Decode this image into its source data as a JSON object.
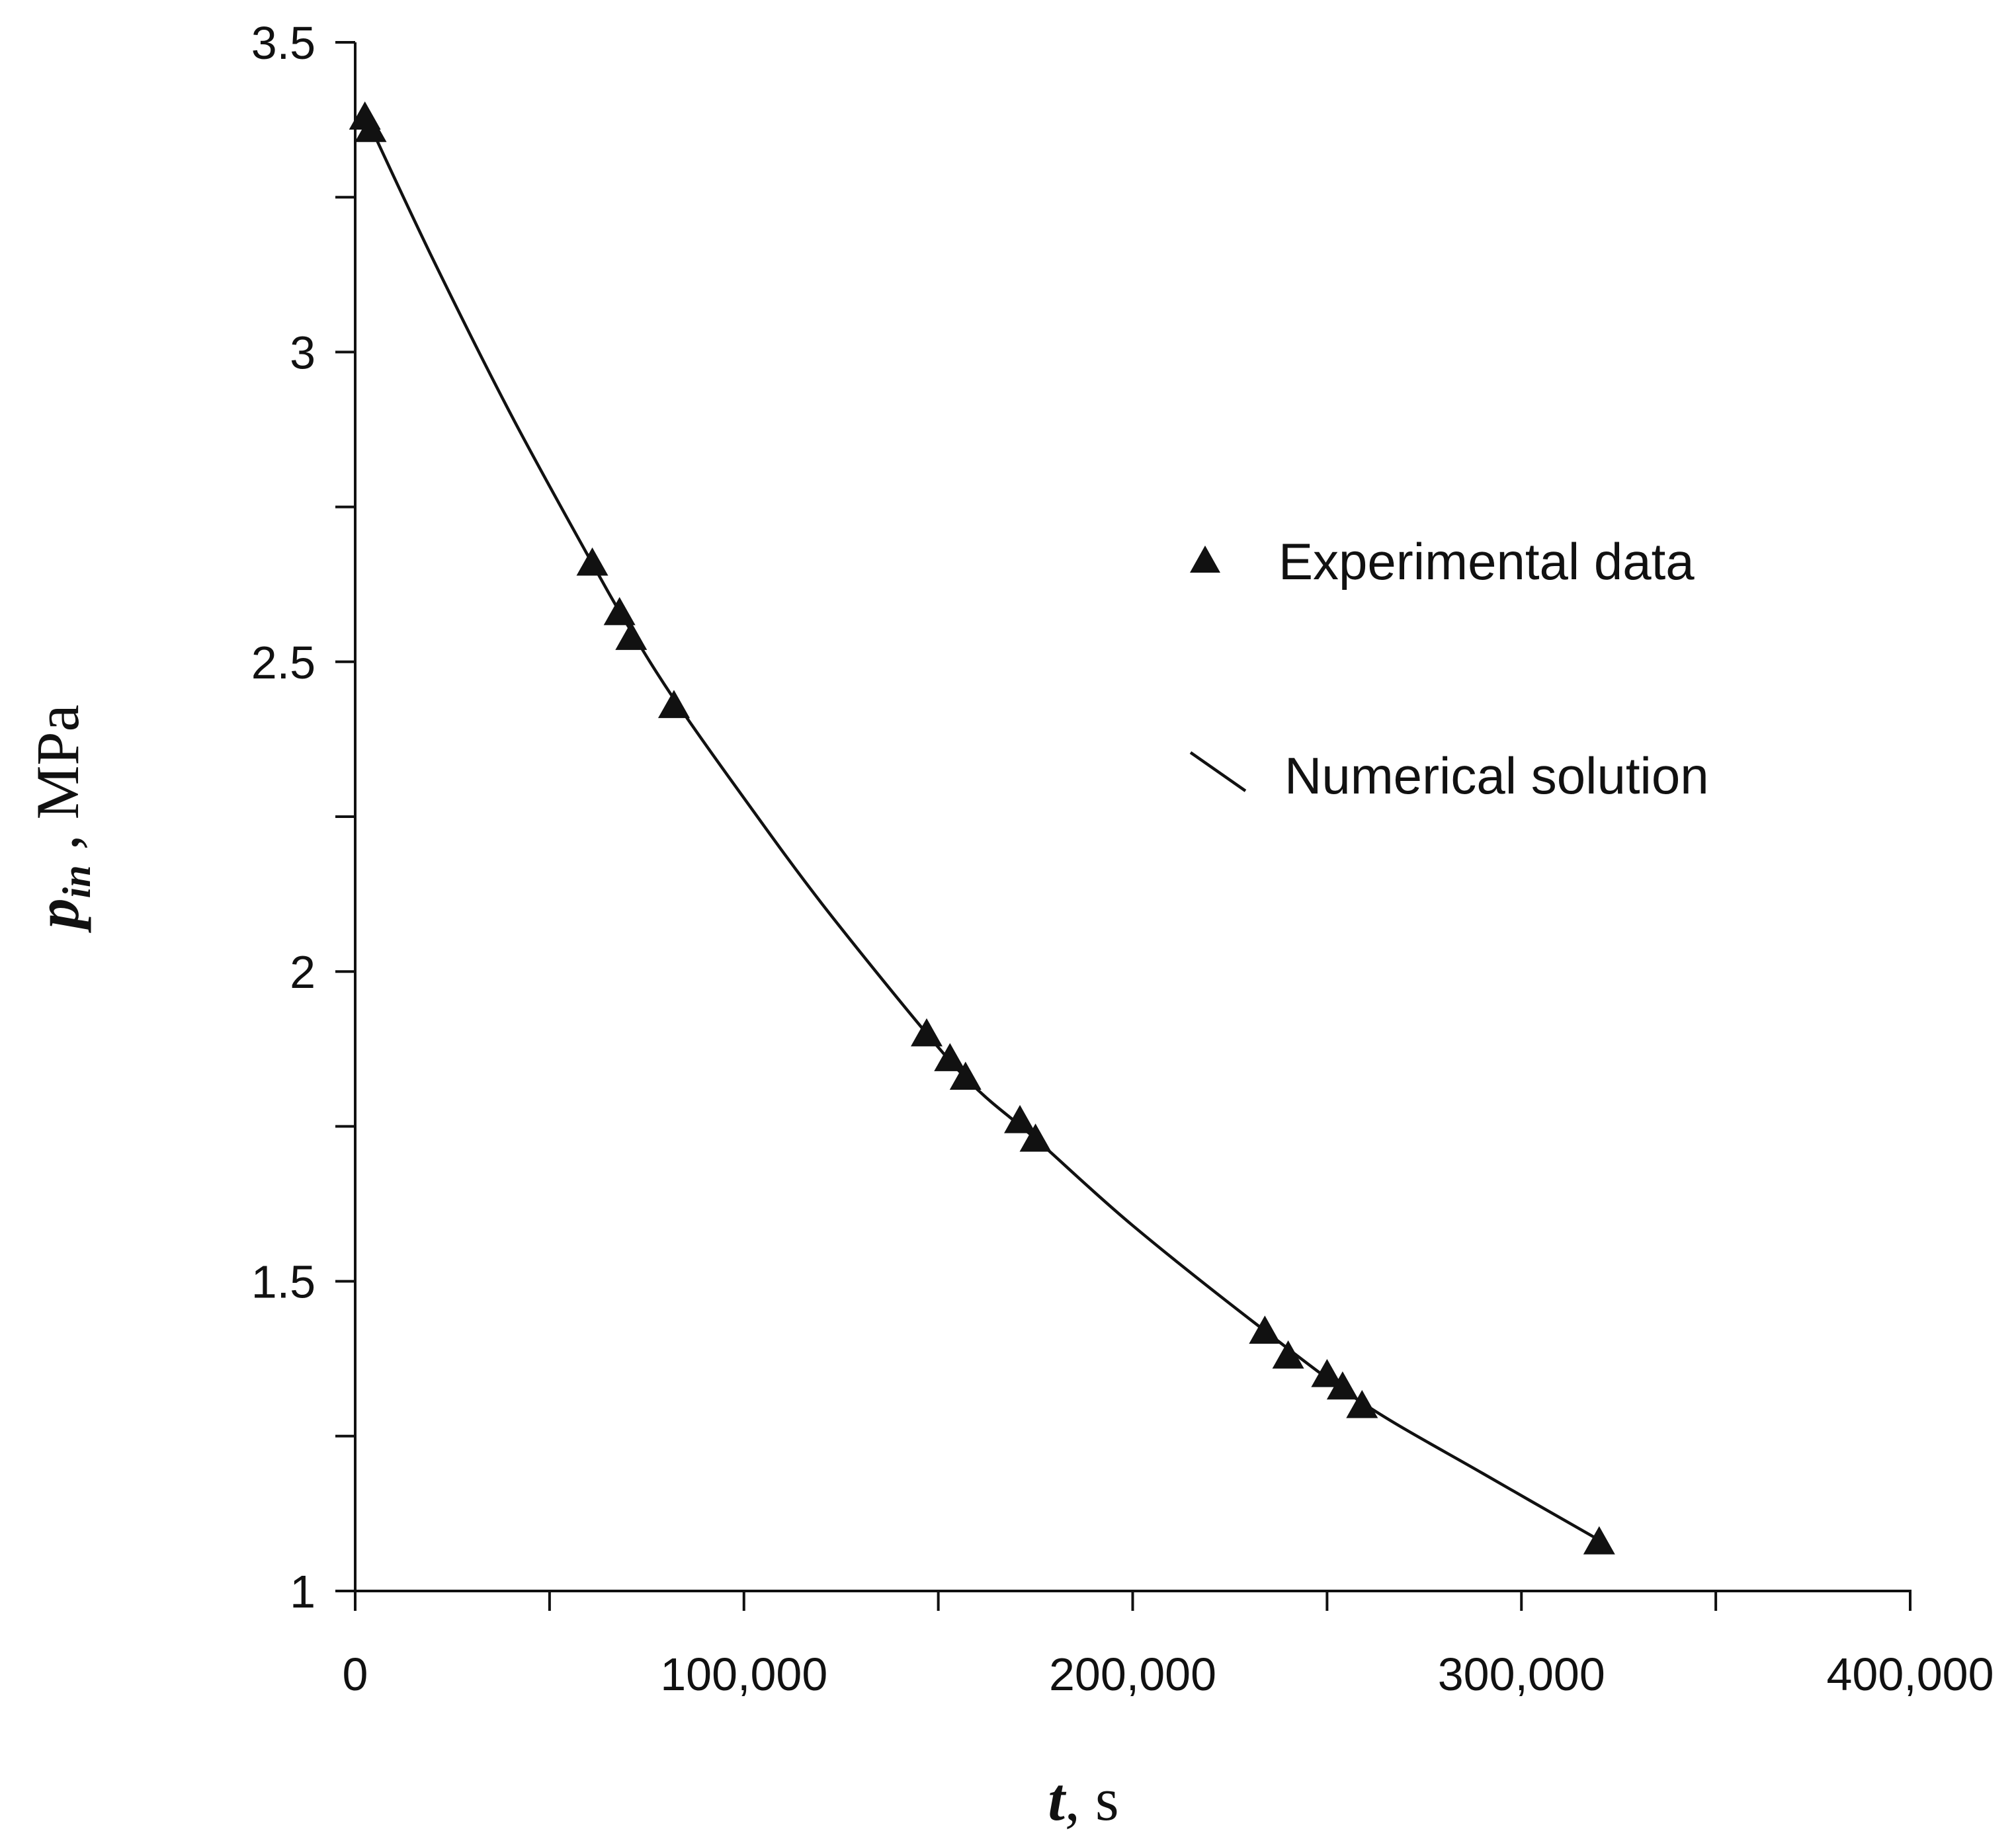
{
  "chart_data": {
    "type": "scatter",
    "xlabel": {
      "symbol": "t",
      "unit": "s"
    },
    "ylabel": {
      "symbol": "p",
      "subscript": "in",
      "unit": "MPa"
    },
    "xlim": [
      0,
      400000
    ],
    "ylim": [
      1,
      3.5
    ],
    "x_ticks": [
      0,
      100000,
      200000,
      300000,
      400000
    ],
    "x_tick_labels": [
      "0",
      "100,000",
      "200,000",
      "300,000",
      "400,000"
    ],
    "x_minor_ticks": [
      50000,
      150000,
      250000,
      350000
    ],
    "y_ticks": [
      1,
      1.5,
      2,
      2.5,
      3,
      3.5
    ],
    "y_tick_labels": [
      "1",
      "1.5",
      "2",
      "2.5",
      "3",
      "3.5"
    ],
    "y_minor_ticks": [
      1.25,
      1.75,
      2.25,
      2.75,
      3.25
    ],
    "grid": false,
    "legend_position": "right-middle",
    "series": [
      {
        "name": "Experimental data",
        "kind": "marker",
        "marker": "triangle",
        "points": [
          [
            2500,
            3.38
          ],
          [
            4000,
            3.36
          ],
          [
            61000,
            2.66
          ],
          [
            68000,
            2.58
          ],
          [
            71000,
            2.54
          ],
          [
            82000,
            2.43
          ],
          [
            147000,
            1.9
          ],
          [
            153000,
            1.86
          ],
          [
            157000,
            1.83
          ],
          [
            171000,
            1.76
          ],
          [
            175000,
            1.73
          ],
          [
            234000,
            1.42
          ],
          [
            240000,
            1.38
          ],
          [
            250000,
            1.35
          ],
          [
            254000,
            1.33
          ],
          [
            259000,
            1.3
          ],
          [
            320000,
            1.08
          ]
        ]
      },
      {
        "name": "Numerical solution",
        "kind": "line",
        "points": [
          [
            2000,
            3.39
          ],
          [
            20000,
            3.15
          ],
          [
            40000,
            2.9
          ],
          [
            60000,
            2.67
          ],
          [
            70000,
            2.56
          ],
          [
            82000,
            2.44
          ],
          [
            100000,
            2.28
          ],
          [
            120000,
            2.11
          ],
          [
            147000,
            1.9
          ],
          [
            160000,
            1.81
          ],
          [
            175000,
            1.73
          ],
          [
            200000,
            1.59
          ],
          [
            234000,
            1.42
          ],
          [
            260000,
            1.3
          ],
          [
            290000,
            1.19
          ],
          [
            322000,
            1.075
          ]
        ]
      }
    ]
  }
}
